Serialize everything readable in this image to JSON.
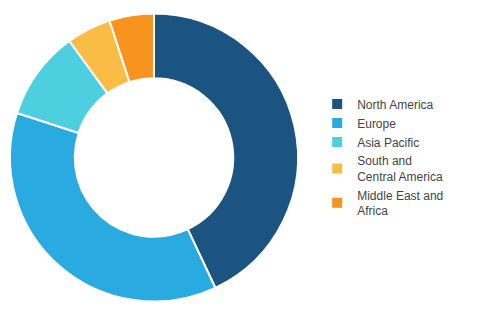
{
  "chart_data": {
    "type": "donut",
    "categories": [
      "North America",
      "Europe",
      "Asia Pacific",
      "South and\nCentral America",
      "Middle East and\nAfrica"
    ],
    "values": [
      43,
      37,
      10,
      5,
      5
    ],
    "colors": [
      "#1b5480",
      "#29aae1",
      "#4dcfe0",
      "#f9bc45",
      "#f7931e"
    ],
    "data_labels": false
  }
}
